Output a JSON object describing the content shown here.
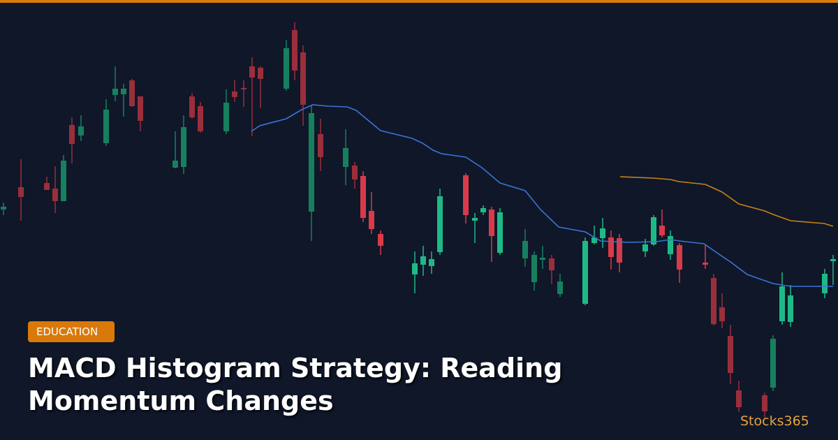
{
  "tag": "EDUCATION",
  "title": [
    "MACD Histogram Strategy: Reading",
    "Momentum Changes"
  ],
  "brand": "Stocks365"
}
